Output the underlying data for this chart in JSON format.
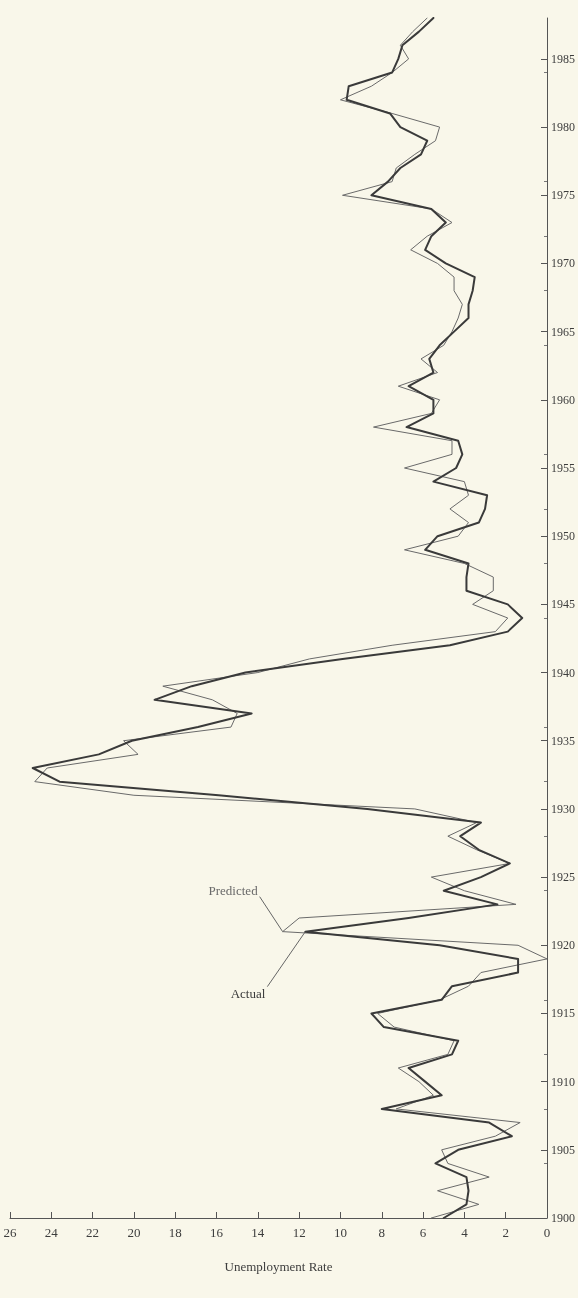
{
  "chart_data": {
    "type": "line",
    "orientation": "horizontal",
    "xlabel": "Unemployment Rate",
    "x": [
      1900,
      1901,
      1902,
      1903,
      1904,
      1905,
      1906,
      1907,
      1908,
      1909,
      1910,
      1911,
      1912,
      1913,
      1914,
      1915,
      1916,
      1917,
      1918,
      1919,
      1920,
      1921,
      1922,
      1923,
      1924,
      1925,
      1926,
      1927,
      1928,
      1929,
      1930,
      1931,
      1932,
      1933,
      1934,
      1935,
      1936,
      1937,
      1938,
      1939,
      1940,
      1941,
      1942,
      1943,
      1944,
      1945,
      1946,
      1947,
      1948,
      1949,
      1950,
      1951,
      1952,
      1953,
      1954,
      1955,
      1956,
      1957,
      1958,
      1959,
      1960,
      1961,
      1962,
      1963,
      1964,
      1965,
      1966,
      1967,
      1968,
      1969,
      1970,
      1971,
      1972,
      1973,
      1974,
      1975,
      1976,
      1977,
      1978,
      1979,
      1980,
      1981,
      1982,
      1983,
      1984,
      1985,
      1986,
      1987,
      1988
    ],
    "series": [
      {
        "name": "Actual",
        "color": "#3a3a3a",
        "values": [
          5.0,
          3.9,
          3.8,
          3.9,
          5.4,
          4.3,
          1.7,
          2.8,
          8.0,
          5.1,
          5.9,
          6.7,
          4.6,
          4.3,
          7.9,
          8.5,
          5.1,
          4.6,
          1.4,
          1.4,
          5.2,
          11.7,
          6.7,
          2.4,
          5.0,
          3.2,
          1.8,
          3.3,
          4.2,
          3.2,
          8.7,
          15.9,
          23.6,
          24.9,
          21.7,
          20.1,
          16.9,
          14.3,
          19.0,
          17.2,
          14.6,
          9.9,
          4.7,
          1.9,
          1.2,
          1.9,
          3.9,
          3.9,
          3.8,
          5.9,
          5.3,
          3.3,
          3.0,
          2.9,
          5.5,
          4.4,
          4.1,
          4.3,
          6.8,
          5.5,
          5.5,
          6.7,
          5.5,
          5.7,
          5.2,
          4.5,
          3.8,
          3.8,
          3.6,
          3.5,
          4.9,
          5.9,
          5.6,
          4.9,
          5.6,
          8.5,
          7.7,
          7.1,
          6.1,
          5.8,
          7.1,
          7.6,
          9.7,
          9.6,
          7.5,
          7.2,
          7.0,
          6.2,
          5.5
        ]
      },
      {
        "name": "Predicted",
        "color": "#6a6a6a",
        "values": [
          5.6,
          3.3,
          5.3,
          2.8,
          4.8,
          5.1,
          2.5,
          1.3,
          7.3,
          5.5,
          6.2,
          7.2,
          4.8,
          4.5,
          7.4,
          8.2,
          5.2,
          3.8,
          3.2,
          0.0,
          1.4,
          12.8,
          12.0,
          1.5,
          4.0,
          5.6,
          1.8,
          3.4,
          4.8,
          3.4,
          6.4,
          20.0,
          24.8,
          24.2,
          19.8,
          20.5,
          15.3,
          15.0,
          16.2,
          18.6,
          14.0,
          11.5,
          7.5,
          2.5,
          1.9,
          3.6,
          2.6,
          2.6,
          4.0,
          6.9,
          4.3,
          3.8,
          4.7,
          3.8,
          4.0,
          6.9,
          4.6,
          4.6,
          8.4,
          5.6,
          5.2,
          7.2,
          5.3,
          6.1,
          5.0,
          4.6,
          4.3,
          4.1,
          4.5,
          4.5,
          5.3,
          6.6,
          5.8,
          4.6,
          5.6,
          9.9,
          7.5,
          7.3,
          6.4,
          5.4,
          5.2,
          7.5,
          10.0,
          8.5,
          7.5,
          6.7,
          7.1,
          6.5,
          5.8
        ]
      }
    ],
    "ylim": [
      1900,
      1988
    ],
    "yticks": [
      1900,
      1905,
      1910,
      1915,
      1920,
      1925,
      1930,
      1935,
      1940,
      1945,
      1950,
      1955,
      1960,
      1965,
      1970,
      1975,
      1980,
      1985
    ],
    "xlim": [
      26,
      0
    ],
    "xticks": [
      26,
      24,
      22,
      20,
      18,
      16,
      14,
      12,
      10,
      8,
      6,
      4,
      2,
      0
    ],
    "grid": false,
    "legend": false,
    "line_style": "solid"
  }
}
